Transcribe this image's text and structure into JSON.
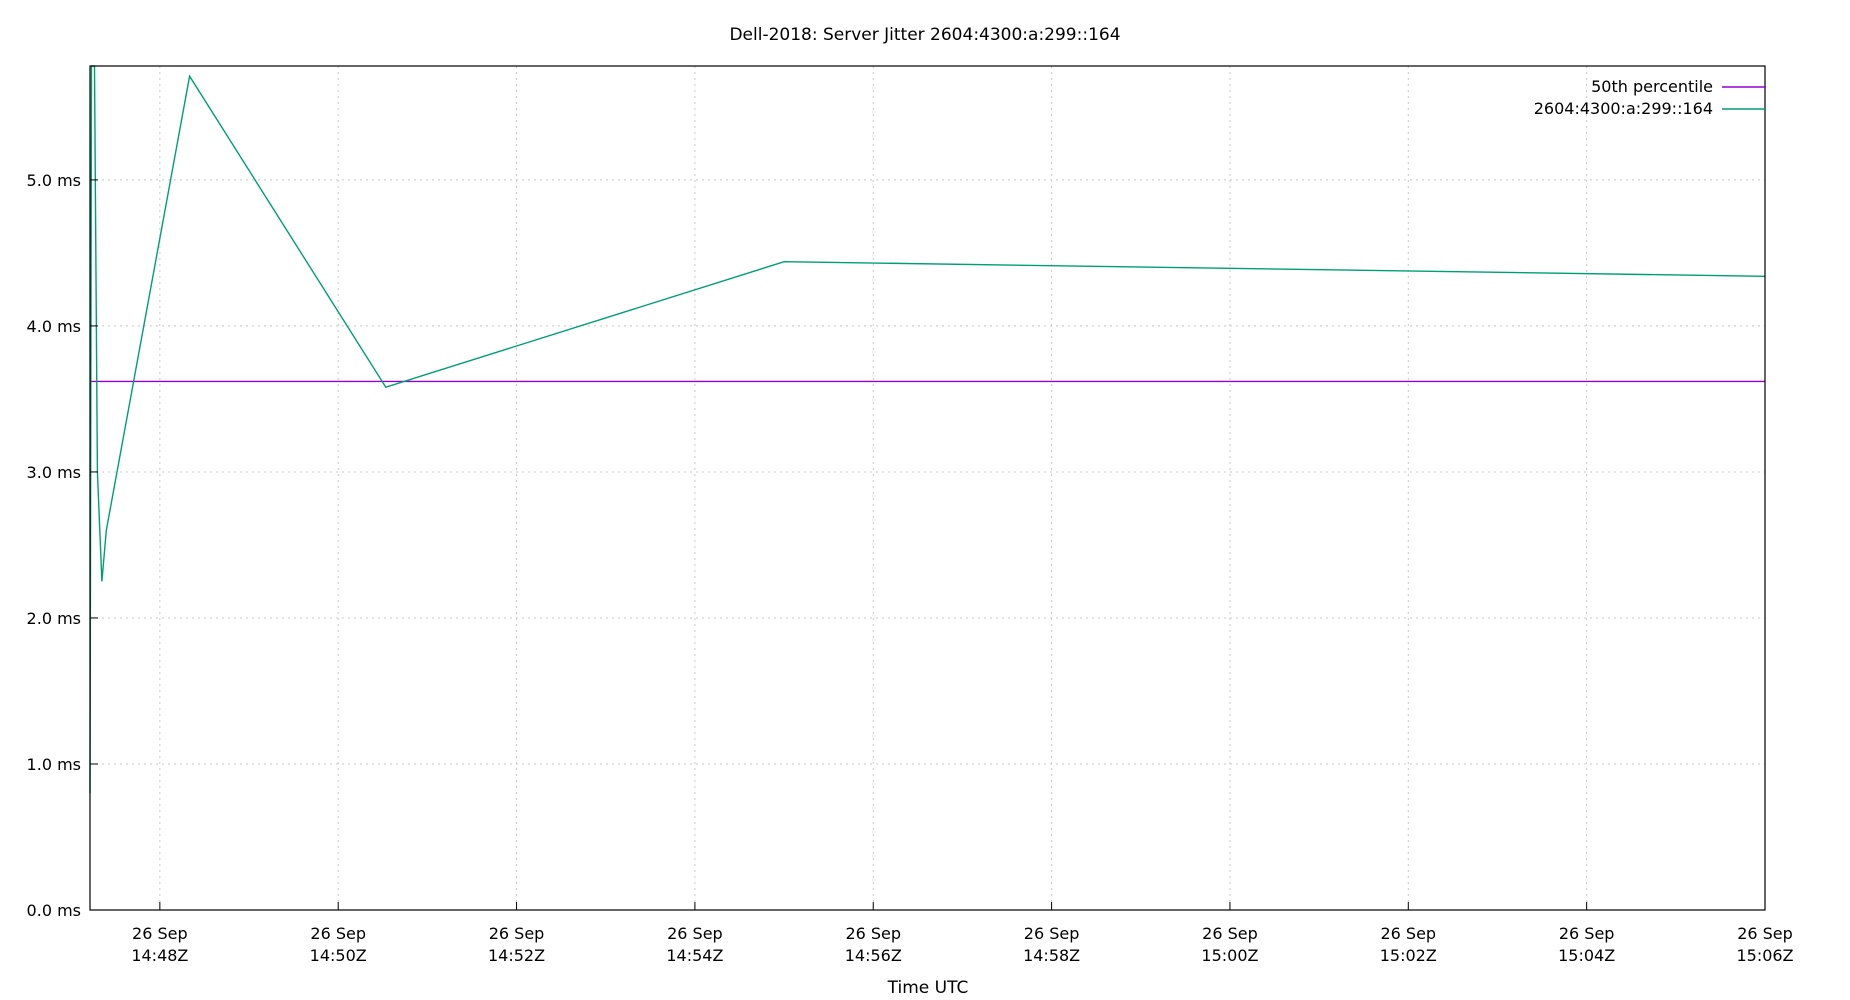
{
  "chart_data": {
    "type": "line",
    "title": "Dell-2018: Server Jitter 2604:4300:a:299::164",
    "xlabel": "Time UTC",
    "ylabel": "",
    "ylim": [
      0,
      5.78
    ],
    "xlim": [
      "2024-09-26T14:47:13Z",
      "2024-09-26T15:06:00Z"
    ],
    "yticks": [
      {
        "value": 0,
        "label": "0.0 ms"
      },
      {
        "value": 1,
        "label": "1.0 ms"
      },
      {
        "value": 2,
        "label": "2.0 ms"
      },
      {
        "value": 3,
        "label": "3.0 ms"
      },
      {
        "value": 4,
        "label": "4.0 ms"
      },
      {
        "value": 5,
        "label": "5.0 ms"
      }
    ],
    "xticks": [
      {
        "value": "2024-09-26T14:48:00Z",
        "line1": "26 Sep",
        "line2": "14:48Z"
      },
      {
        "value": "2024-09-26T14:50:00Z",
        "line1": "26 Sep",
        "line2": "14:50Z"
      },
      {
        "value": "2024-09-26T14:52:00Z",
        "line1": "26 Sep",
        "line2": "14:52Z"
      },
      {
        "value": "2024-09-26T14:54:00Z",
        "line1": "26 Sep",
        "line2": "14:54Z"
      },
      {
        "value": "2024-09-26T14:56:00Z",
        "line1": "26 Sep",
        "line2": "14:56Z"
      },
      {
        "value": "2024-09-26T14:58:00Z",
        "line1": "26 Sep",
        "line2": "14:58Z"
      },
      {
        "value": "2024-09-26T15:00:00Z",
        "line1": "26 Sep",
        "line2": "15:00Z"
      },
      {
        "value": "2024-09-26T15:02:00Z",
        "line1": "26 Sep",
        "line2": "15:02Z"
      },
      {
        "value": "2024-09-26T15:04:00Z",
        "line1": "26 Sep",
        "line2": "15:04Z"
      },
      {
        "value": "2024-09-26T15:06:00Z",
        "line1": "26 Sep",
        "line2": "15:06Z"
      }
    ],
    "grid": true,
    "legend_position": "top-right",
    "series": [
      {
        "name": "50th percentile",
        "color": "#9400d3",
        "points": [
          {
            "x": "2024-09-26T14:47:13Z",
            "y": 3.62
          },
          {
            "x": "2024-09-26T15:06:00Z",
            "y": 3.62
          }
        ]
      },
      {
        "name": "2604:4300:a:299::164",
        "color": "#009e73",
        "points": [
          {
            "x": "2024-09-26T14:47:13Z",
            "y": 0.8
          },
          {
            "x": "2024-09-26T14:47:14Z",
            "y": 5.78
          },
          {
            "x": "2024-09-26T14:47:16Z",
            "y": 5.78
          },
          {
            "x": "2024-09-26T14:47:18Z",
            "y": 3.0
          },
          {
            "x": "2024-09-26T14:47:21Z",
            "y": 2.25
          },
          {
            "x": "2024-09-26T14:47:24Z",
            "y": 2.6
          },
          {
            "x": "2024-09-26T14:48:20Z",
            "y": 5.71
          },
          {
            "x": "2024-09-26T14:50:32Z",
            "y": 3.58
          },
          {
            "x": "2024-09-26T14:55:00Z",
            "y": 4.44
          },
          {
            "x": "2024-09-26T15:06:00Z",
            "y": 4.34
          }
        ]
      }
    ]
  }
}
